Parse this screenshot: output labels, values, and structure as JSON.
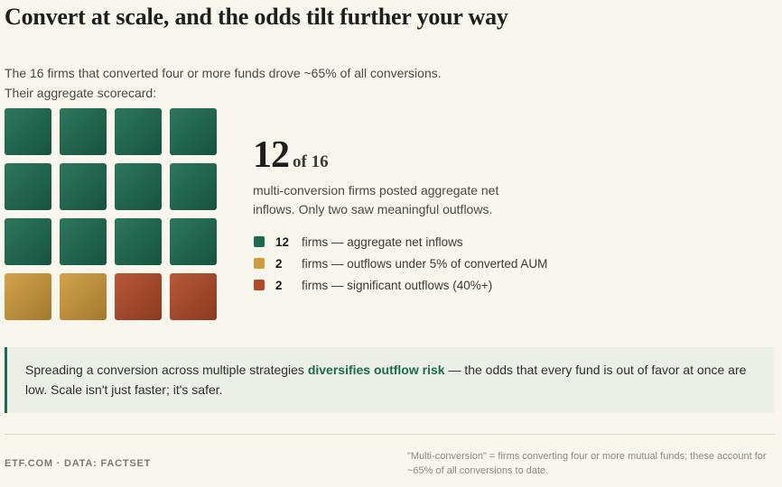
{
  "header": {
    "title": "Convert at scale, and the odds tilt further your way",
    "subtitle": [
      "The 16 firms that converted four or more funds drove ~65% of all conversions.",
      "Their aggregate scorecard:"
    ]
  },
  "headline": {
    "value": 12,
    "suffix": "of 16",
    "description": "multi-conversion firms posted aggregate net inflows. Only two saw meaningful outflows."
  },
  "legend": [
    {
      "count": 12,
      "color": "#1c6b50",
      "label": "firms — aggregate net inflows"
    },
    {
      "count": 2,
      "color": "#cf9b3c",
      "label": "firms — outflows under 5% of converted AUM"
    },
    {
      "count": 2,
      "color": "#b24a28",
      "label": "firms — significant outflows (40%+)"
    }
  ],
  "callout": {
    "before": "Spreading a conversion across multiple strategies ",
    "emphasis": "diversifies outflow risk",
    "after": " — the odds that every fund is out of favor at once are low. Scale isn't just faster; it's safer."
  },
  "footer": {
    "source": "ETF.COM · DATA: FACTSET",
    "note": "\"Multi-conversion\" = firms converting four or more mutual funds; these account for ~65% of all conversions to date."
  }
}
